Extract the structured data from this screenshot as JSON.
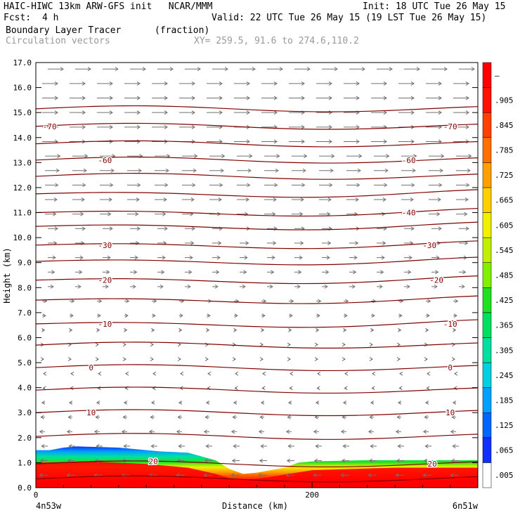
{
  "header": {
    "line1_left": "HAIC-HIWC 13km ARW-GFS init   NCAR/MMM",
    "line1_right": "Init: 18 UTC Tue 26 May 15",
    "fcst_label": "Fcst:",
    "fcst_value": "4 h",
    "valid": "Valid: 22 UTC Tue 26 May 15 (19 LST Tue 26 May 15)",
    "field_name": "Boundary Layer Tracer",
    "field_units": "(fraction)",
    "vector_name": "Circulation vectors",
    "xy_text": "XY= 259.5, 91.6 to 274.6,110.2"
  },
  "chart_data": {
    "type": "cross-section",
    "ylabel": "Height (km)",
    "xlabel": "Distance (km)",
    "yticks": [
      "0.0",
      "1.0",
      "2.0",
      "3.0",
      "4.0",
      "5.0",
      "6.0",
      "7.0",
      "8.0",
      "9.0",
      "10.0",
      "11.0",
      "12.0",
      "13.0",
      "14.0",
      "15.0",
      "16.0",
      "17.0"
    ],
    "ylim": [
      0,
      17
    ],
    "xlim": [
      0,
      320
    ],
    "xticks": [
      {
        "value": 0,
        "label": "0"
      },
      {
        "value": 200,
        "label": "200"
      }
    ],
    "x_start_label": "4n53w",
    "x_end_label": "6n51w",
    "colorbar": {
      "labels": [
        ".005",
        ".065",
        ".125",
        ".185",
        ".245",
        ".305",
        ".365",
        ".425",
        ".485",
        ".545",
        ".605",
        ".665",
        ".725",
        ".785",
        ".845",
        ".905",
        "–"
      ],
      "colors": [
        "#ffffff",
        "#1030ff",
        "#0066ff",
        "#00a0ff",
        "#00d0e0",
        "#00e0a0",
        "#00e060",
        "#20e020",
        "#80f000",
        "#c0f000",
        "#f0f000",
        "#ffd000",
        "#ffa000",
        "#ff7000",
        "#ff4000",
        "#ff1000",
        "#ff0000"
      ]
    },
    "temperature_contours": [
      {
        "value": 20,
        "label": "20"
      },
      {
        "value": 10,
        "label": "10"
      },
      {
        "value": 0,
        "label": "0"
      },
      {
        "value": -10,
        "label": "-10"
      },
      {
        "value": -20,
        "label": "-20"
      },
      {
        "value": -30,
        "label": "-30"
      },
      {
        "value": -40,
        "label": "-40"
      },
      {
        "value": -60,
        "label": "-60"
      },
      {
        "value": -70,
        "label": "-70"
      }
    ]
  }
}
